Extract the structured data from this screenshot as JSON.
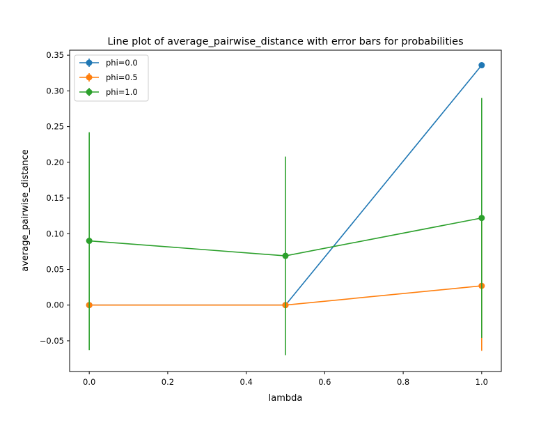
{
  "chart_data": {
    "type": "line",
    "title": "Line plot of average_pairwise_distance with error bars for probabilities",
    "xlabel": "lambda",
    "ylabel": "average_pairwise_distance",
    "xlim": [
      -0.05,
      1.05
    ],
    "ylim": [
      -0.093,
      0.357
    ],
    "x_ticks": [
      0.0,
      0.2,
      0.4,
      0.6,
      0.8,
      1.0
    ],
    "x_tick_labels": [
      "0.0",
      "0.2",
      "0.4",
      "0.6",
      "0.8",
      "1.0"
    ],
    "y_ticks": [
      -0.05,
      0.0,
      0.05,
      0.1,
      0.15,
      0.2,
      0.25,
      0.3,
      0.35
    ],
    "y_tick_labels": [
      "−0.05",
      "0.00",
      "0.05",
      "0.10",
      "0.15",
      "0.20",
      "0.25",
      "0.30",
      "0.35"
    ],
    "grid": false,
    "legend_position": "top-left",
    "series": [
      {
        "name": "phi=0.0",
        "color": "#1f77b4",
        "x": [
          0.0,
          0.5,
          1.0
        ],
        "values": [
          0.0,
          0.0,
          0.336
        ],
        "err_low": [
          0.0,
          0.0,
          0.336
        ],
        "err_high": [
          0.0,
          0.0,
          0.336
        ]
      },
      {
        "name": "phi=0.5",
        "color": "#ff7f0e",
        "x": [
          0.0,
          0.5,
          1.0
        ],
        "values": [
          0.0,
          0.0,
          0.027
        ],
        "err_low": [
          0.0,
          0.0,
          -0.064
        ],
        "err_high": [
          0.0,
          0.0,
          0.118
        ]
      },
      {
        "name": "phi=1.0",
        "color": "#2ca02c",
        "x": [
          0.0,
          0.5,
          1.0
        ],
        "values": [
          0.09,
          0.069,
          0.122
        ],
        "err_low": [
          -0.063,
          -0.07,
          -0.046
        ],
        "err_high": [
          0.242,
          0.208,
          0.29
        ]
      }
    ]
  }
}
